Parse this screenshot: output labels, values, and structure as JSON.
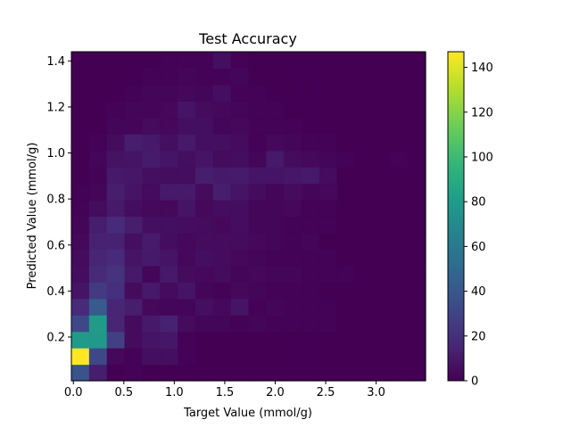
{
  "chart_data": {
    "type": "heatmap",
    "title": "Test Accuracy",
    "xlabel": "Target Value (mmol/g)",
    "ylabel": "Predicted Value (mmol/g)",
    "xlim": [
      -0.02,
      3.49
    ],
    "ylim": [
      0.01,
      1.44
    ],
    "x_ticks": [
      0.0,
      0.5,
      1.0,
      1.5,
      2.0,
      2.5,
      3.0
    ],
    "x_tick_labels": [
      "0.0",
      "0.5",
      "1.0",
      "1.5",
      "2.0",
      "2.5",
      "3.0"
    ],
    "y_ticks": [
      0.2,
      0.4,
      0.6,
      0.8,
      1.0,
      1.2,
      1.4
    ],
    "y_tick_labels": [
      "0.2",
      "0.4",
      "0.6",
      "0.8",
      "1.0",
      "1.2",
      "1.4"
    ],
    "colorbar": {
      "colormap": "viridis",
      "min": 0,
      "max": 147,
      "ticks": [
        0,
        20,
        40,
        60,
        80,
        100,
        120,
        140
      ],
      "tick_labels": [
        "0",
        "20",
        "40",
        "60",
        "80",
        "100",
        "120",
        "140"
      ]
    },
    "grid": false,
    "n_cols": 20,
    "n_rows": 20,
    "counts": [
      [
        38,
        12,
        0,
        1,
        0,
        0,
        0,
        0,
        0,
        0,
        0,
        0,
        0,
        0,
        0,
        0,
        0,
        0,
        0,
        0
      ],
      [
        147,
        32,
        3,
        1,
        6,
        6,
        1,
        0,
        0,
        0,
        0,
        0,
        0,
        0,
        0,
        0,
        0,
        0,
        0,
        0
      ],
      [
        80,
        78,
        28,
        4,
        8,
        9,
        1,
        0,
        0,
        0,
        0,
        0,
        0,
        0,
        0,
        0,
        0,
        0,
        0,
        0
      ],
      [
        32,
        80,
        15,
        4,
        10,
        14,
        4,
        2,
        2,
        1,
        2,
        1,
        1,
        1,
        1,
        0,
        0,
        0,
        0,
        0
      ],
      [
        18,
        42,
        15,
        12,
        3,
        2,
        2,
        6,
        3,
        8,
        1,
        2,
        1,
        1,
        1,
        0,
        0,
        0,
        0,
        0
      ],
      [
        8,
        25,
        20,
        4,
        10,
        4,
        8,
        2,
        1,
        3,
        2,
        1,
        1,
        1,
        0,
        0,
        0,
        0,
        0,
        0
      ],
      [
        5,
        18,
        22,
        10,
        2,
        10,
        4,
        3,
        4,
        2,
        3,
        2,
        2,
        1,
        1,
        1,
        0,
        0,
        0,
        0
      ],
      [
        4,
        15,
        18,
        8,
        10,
        8,
        3,
        6,
        4,
        3,
        2,
        1,
        1,
        1,
        1,
        0,
        0,
        0,
        0,
        0
      ],
      [
        3,
        14,
        14,
        6,
        11,
        5,
        3,
        4,
        4,
        4,
        3,
        2,
        1,
        2,
        0,
        0,
        0,
        0,
        0,
        0
      ],
      [
        2,
        12,
        18,
        12,
        6,
        6,
        5,
        4,
        3,
        5,
        2,
        2,
        1,
        1,
        1,
        0,
        0,
        0,
        0,
        0
      ],
      [
        1,
        4,
        10,
        5,
        3,
        3,
        8,
        3,
        5,
        5,
        2,
        2,
        3,
        1,
        1,
        0,
        0,
        0,
        0,
        0
      ],
      [
        1,
        2,
        12,
        8,
        4,
        10,
        10,
        4,
        12,
        8,
        4,
        2,
        4,
        2,
        3,
        0,
        0,
        0,
        0,
        0
      ],
      [
        0,
        1,
        10,
        9,
        6,
        5,
        5,
        12,
        10,
        11,
        8,
        8,
        9,
        10,
        4,
        0,
        0,
        0,
        0,
        0
      ],
      [
        0,
        2,
        7,
        8,
        11,
        8,
        6,
        8,
        4,
        5,
        2,
        10,
        4,
        3,
        2,
        1,
        0,
        0,
        1,
        0
      ],
      [
        0,
        1,
        4,
        12,
        10,
        6,
        10,
        6,
        6,
        4,
        1,
        3,
        2,
        1,
        1,
        0,
        0,
        0,
        0,
        0
      ],
      [
        0,
        0,
        2,
        2,
        4,
        3,
        6,
        6,
        2,
        3,
        1,
        1,
        1,
        0,
        0,
        0,
        0,
        0,
        0,
        0
      ],
      [
        0,
        0,
        1,
        2,
        2,
        3,
        8,
        4,
        3,
        2,
        1,
        1,
        0,
        0,
        0,
        0,
        0,
        0,
        0,
        0
      ],
      [
        0,
        0,
        0,
        1,
        2,
        2,
        3,
        2,
        6,
        1,
        1,
        0,
        0,
        0,
        0,
        0,
        0,
        0,
        0,
        0
      ],
      [
        0,
        0,
        0,
        0,
        1,
        1,
        2,
        1,
        1,
        2,
        0,
        0,
        0,
        0,
        0,
        0,
        0,
        0,
        0,
        0
      ],
      [
        0,
        0,
        0,
        0,
        0,
        1,
        1,
        1,
        6,
        1,
        0,
        0,
        0,
        0,
        0,
        0,
        0,
        0,
        0,
        0
      ]
    ]
  }
}
